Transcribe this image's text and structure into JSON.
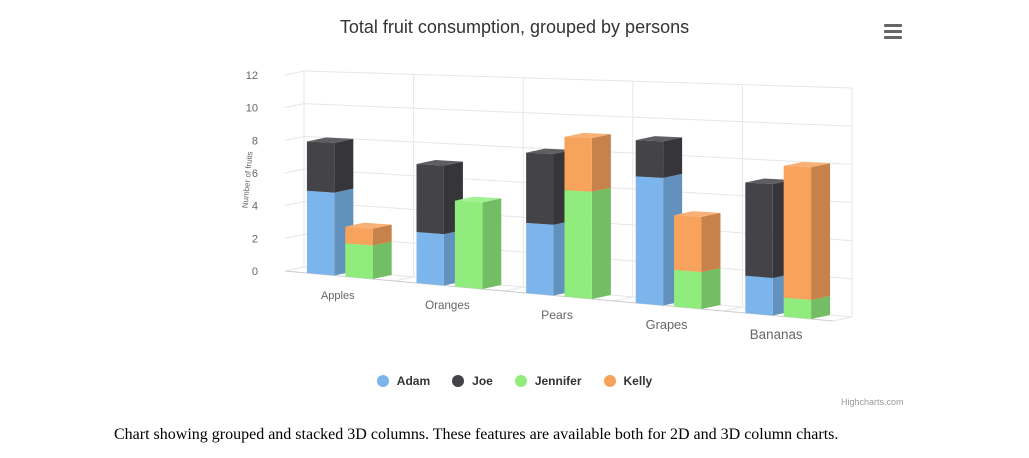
{
  "chart_data": {
    "type": "bar",
    "title": "Total fruit consumption, grouped by persons",
    "ylabel": "Number of fruits",
    "xlabel": "",
    "ylim": [
      0,
      12
    ],
    "yticks": [
      "0",
      "2",
      "4",
      "6",
      "8",
      "10",
      "12"
    ],
    "categories": [
      "Apples",
      "Oranges",
      "Pears",
      "Grapes",
      "Bananas"
    ],
    "stacked": true,
    "grid": true,
    "legend_position": "bottom",
    "series": [
      {
        "name": "Adam",
        "stack": "male",
        "color": "#7cb5ec",
        "values": [
          5,
          3,
          4,
          7,
          2
        ]
      },
      {
        "name": "Joe",
        "stack": "male",
        "color": "#434348",
        "values": [
          3,
          4,
          4,
          2,
          5
        ]
      },
      {
        "name": "Jennifer",
        "stack": "female",
        "color": "#90ed7d",
        "values": [
          2,
          5,
          6,
          2,
          1
        ]
      },
      {
        "name": "Kelly",
        "stack": "female",
        "color": "#f7a35c",
        "values": [
          1,
          0,
          3,
          3,
          7
        ]
      }
    ]
  },
  "credits": "Highcharts.com",
  "caption": "Chart showing grouped and stacked 3D columns. These features are available both for 2D and 3D column charts.",
  "menu_icon": "hamburger-menu-icon"
}
